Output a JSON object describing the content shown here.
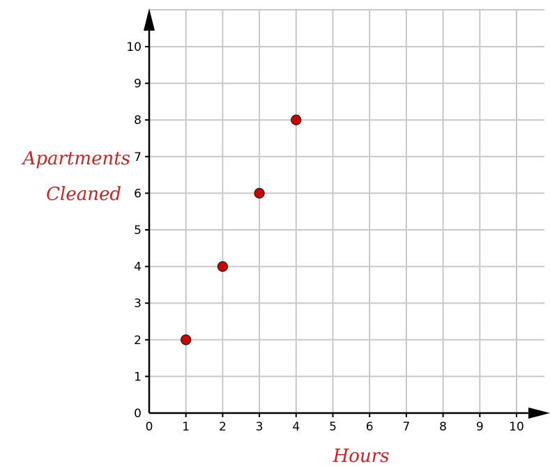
{
  "chart_data": {
    "type": "scatter",
    "xlabel": "Hours",
    "ylabel_lines": [
      "Apartments",
      "Cleaned"
    ],
    "xlim": [
      0,
      10
    ],
    "ylim": [
      0,
      10
    ],
    "x_ticks": [
      "0",
      "1",
      "2",
      "3",
      "4",
      "5",
      "6",
      "7",
      "8",
      "9",
      "10"
    ],
    "y_ticks": [
      "0",
      "1",
      "2",
      "3",
      "4",
      "5",
      "6",
      "7",
      "8",
      "9",
      "10"
    ],
    "grid": true,
    "series": [
      {
        "x": [
          1,
          2,
          3,
          4
        ],
        "y": [
          2,
          4,
          6,
          8
        ]
      }
    ],
    "colors": {
      "point": "#cc0000",
      "label": "#cc2222",
      "grid": "#c8c8c8"
    }
  }
}
